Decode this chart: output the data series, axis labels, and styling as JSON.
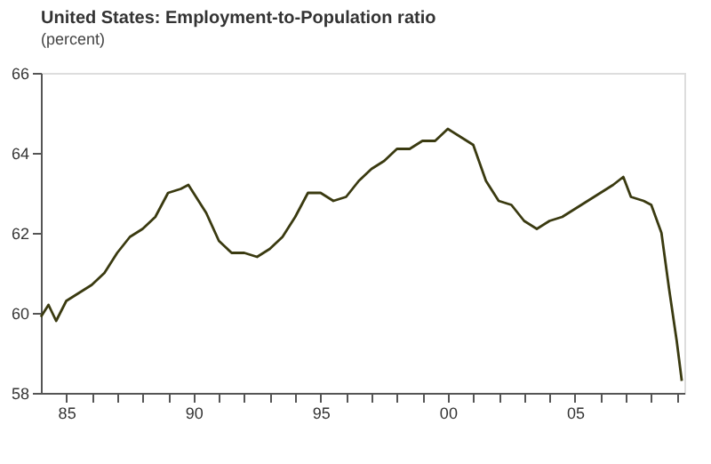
{
  "chart_data": {
    "type": "line",
    "title": "United States: Employment-to-Population ratio",
    "subtitle": "(percent)",
    "x": [
      1984.0,
      1984.3,
      1984.6,
      1985.0,
      1985.5,
      1986.0,
      1986.5,
      1987.0,
      1987.5,
      1988.0,
      1988.5,
      1989.0,
      1989.5,
      1989.8,
      1990.0,
      1990.5,
      1991.0,
      1991.5,
      1992.0,
      1992.5,
      1993.0,
      1993.5,
      1994.0,
      1994.5,
      1995.0,
      1995.5,
      1996.0,
      1996.5,
      1997.0,
      1997.5,
      1998.0,
      1998.5,
      1999.0,
      1999.5,
      2000.0,
      2000.5,
      2001.0,
      2001.5,
      2002.0,
      2002.5,
      2003.0,
      2003.5,
      2004.0,
      2004.5,
      2005.0,
      2005.5,
      2006.0,
      2006.5,
      2006.9,
      2007.2,
      2007.7,
      2008.0,
      2008.4,
      2008.7,
      2009.0,
      2009.2
    ],
    "series": [
      {
        "color": "#3a3a10",
        "values": [
          59.9,
          60.2,
          59.8,
          60.3,
          60.5,
          60.7,
          61.0,
          61.5,
          61.9,
          62.1,
          62.4,
          63.0,
          63.1,
          63.2,
          63.0,
          62.5,
          61.8,
          61.5,
          61.5,
          61.4,
          61.6,
          61.9,
          62.4,
          63.0,
          63.0,
          62.8,
          62.9,
          63.3,
          63.6,
          63.8,
          64.1,
          64.1,
          64.3,
          64.3,
          64.6,
          64.4,
          64.2,
          63.3,
          62.8,
          62.7,
          62.3,
          62.1,
          62.3,
          62.4,
          62.6,
          62.8,
          63.0,
          63.2,
          63.4,
          62.9,
          62.8,
          62.7,
          62.0,
          60.6,
          59.3,
          58.3
        ]
      }
    ],
    "xlim": [
      1984.0,
      2009.3
    ],
    "xticks": [
      {
        "value": 1985,
        "label": "85"
      },
      {
        "value": 1986,
        "label": null
      },
      {
        "value": 1987,
        "label": null
      },
      {
        "value": 1988,
        "label": null
      },
      {
        "value": 1989,
        "label": null
      },
      {
        "value": 1990,
        "label": "90"
      },
      {
        "value": 1991,
        "label": null
      },
      {
        "value": 1992,
        "label": null
      },
      {
        "value": 1993,
        "label": null
      },
      {
        "value": 1994,
        "label": null
      },
      {
        "value": 1995,
        "label": "95"
      },
      {
        "value": 1996,
        "label": null
      },
      {
        "value": 1997,
        "label": null
      },
      {
        "value": 1998,
        "label": null
      },
      {
        "value": 1999,
        "label": null
      },
      {
        "value": 2000,
        "label": "00"
      },
      {
        "value": 2001,
        "label": null
      },
      {
        "value": 2002,
        "label": null
      },
      {
        "value": 2003,
        "label": null
      },
      {
        "value": 2004,
        "label": null
      },
      {
        "value": 2005,
        "label": "05"
      },
      {
        "value": 2006,
        "label": null
      },
      {
        "value": 2007,
        "label": null
      },
      {
        "value": 2008,
        "label": null
      },
      {
        "value": 2009,
        "label": null
      }
    ],
    "ylim": [
      58,
      66
    ],
    "yticks": [
      58,
      60,
      62,
      64,
      66
    ],
    "grid": false,
    "legend": false
  }
}
